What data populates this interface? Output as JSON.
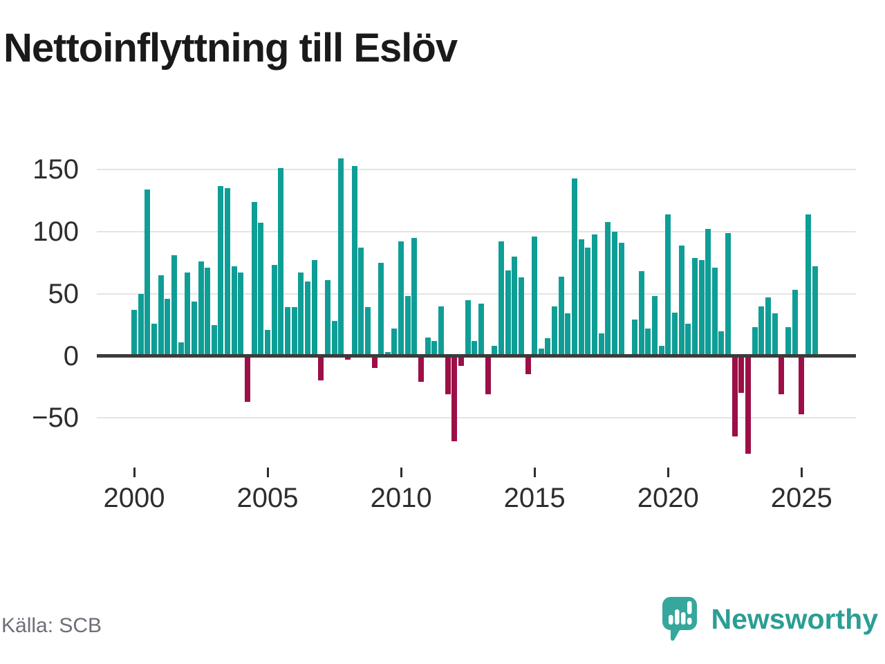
{
  "title": "Nettoinflyttning till Eslöv",
  "source": "Källa: SCB",
  "branding": {
    "name": "Newsworthy",
    "logo_icon": "speech-bubble-bar-chart-icon",
    "color": "#2b9e94"
  },
  "chart_data": {
    "type": "bar",
    "title": "Nettoinflyttning till Eslöv",
    "frequency": "quarterly",
    "start_year": 2000,
    "start_quarter": 1,
    "x_tick_labels": [
      "2000",
      "2005",
      "2010",
      "2015",
      "2020",
      "2025"
    ],
    "x_tick_indices": [
      0,
      20,
      40,
      60,
      80,
      100
    ],
    "y_tick_labels": [
      "150",
      "100",
      "50",
      "0",
      "−50"
    ],
    "y_tick_values": [
      150,
      100,
      50,
      0,
      -50
    ],
    "ylim": [
      -80,
      165
    ],
    "grid": true,
    "legend": false,
    "positive_color": "#0f9e96",
    "negative_color": "#9c0f47",
    "values": [
      37,
      50,
      134,
      26,
      65,
      46,
      81,
      11,
      67,
      44,
      76,
      71,
      25,
      137,
      135,
      72,
      67,
      -37,
      124,
      107,
      21,
      73,
      151,
      39,
      39,
      67,
      60,
      77,
      -20,
      61,
      28,
      159,
      -3,
      153,
      87,
      39,
      -10,
      75,
      3,
      22,
      92,
      48,
      95,
      -21,
      15,
      12,
      40,
      -31,
      -69,
      -8,
      45,
      12,
      42,
      -31,
      8,
      92,
      69,
      80,
      63,
      -15,
      96,
      6,
      14,
      40,
      64,
      34,
      143,
      94,
      87,
      98,
      18,
      108,
      100,
      91,
      0,
      29,
      68,
      22,
      48,
      8,
      114,
      35,
      89,
      26,
      79,
      77,
      102,
      71,
      20,
      99,
      -65,
      -30,
      -79,
      23,
      40,
      47,
      34,
      -31,
      23,
      53,
      -47,
      114,
      72
    ]
  }
}
